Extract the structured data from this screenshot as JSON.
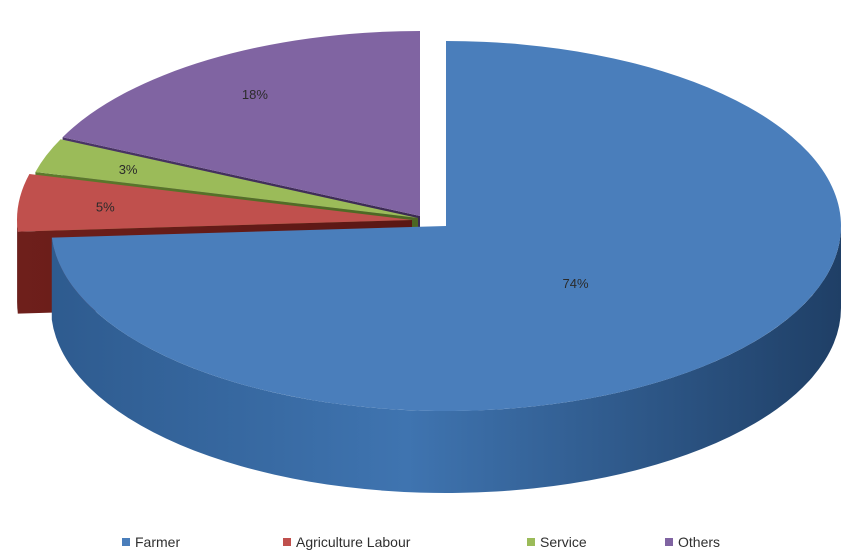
{
  "chart_data": {
    "type": "pie",
    "style": "3d-exploded",
    "categories": [
      "Farmer",
      "Agriculture Labour",
      "Service",
      "Others"
    ],
    "values": [
      74,
      5,
      3,
      18
    ],
    "labels": [
      "74%",
      "5%",
      "3%",
      "18%"
    ],
    "colors": [
      "#4a7ebb",
      "#c0504d",
      "#9bbb59",
      "#8064a2"
    ],
    "legend_position": "bottom"
  }
}
